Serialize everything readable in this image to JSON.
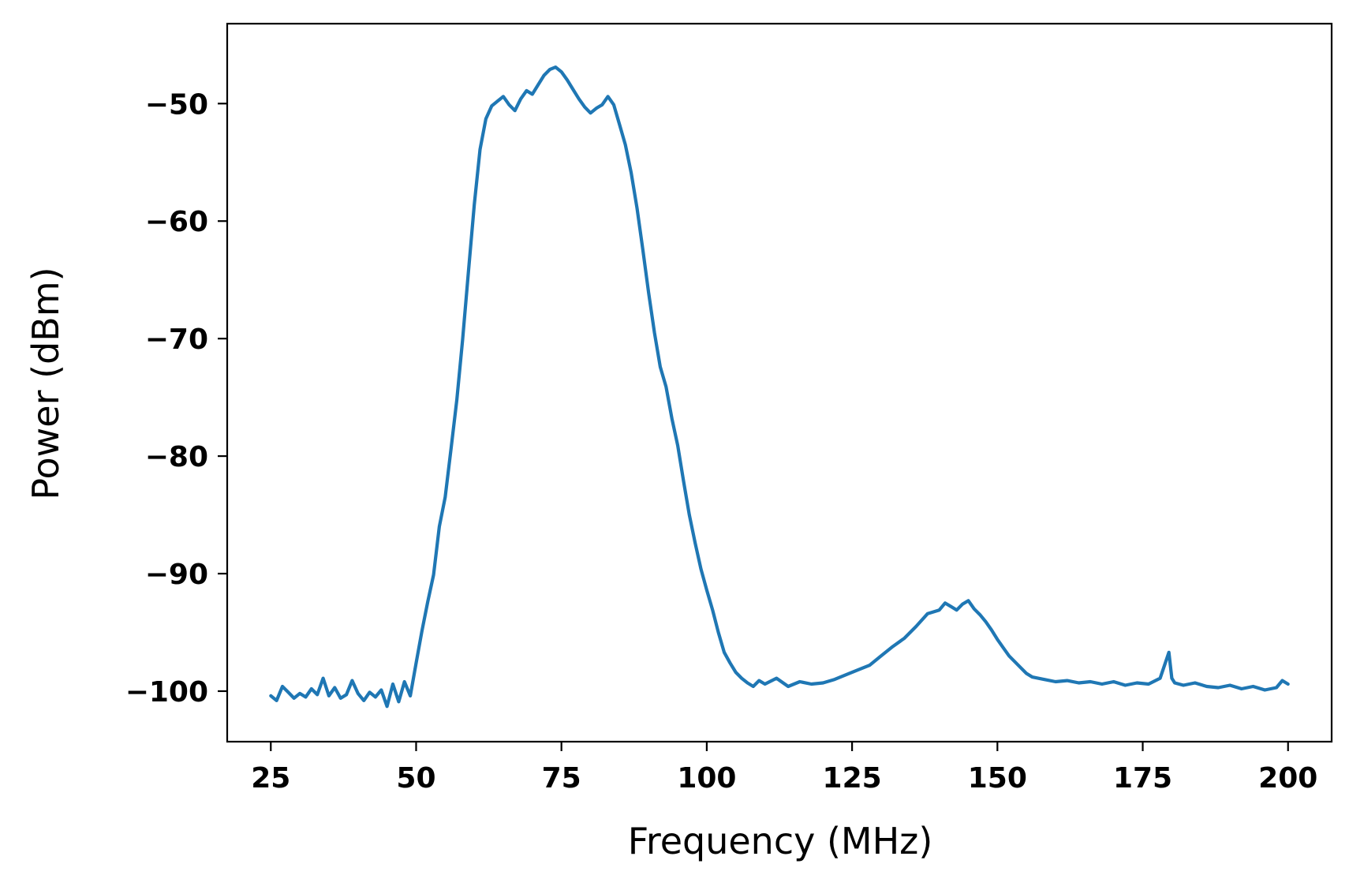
{
  "chart_data": {
    "type": "line",
    "title": "",
    "xlabel": "Frequency (MHz)",
    "ylabel": "Power (dBm)",
    "xlim": [
      17.5,
      207.5
    ],
    "ylim": [
      -104.3,
      -43.2
    ],
    "xticks": [
      25,
      50,
      75,
      100,
      125,
      150,
      175,
      200
    ],
    "xtick_labels": [
      "25",
      "50",
      "75",
      "100",
      "125",
      "150",
      "175",
      "200"
    ],
    "yticks": [
      -50,
      -60,
      -70,
      -80,
      -90,
      -100
    ],
    "ytick_labels": [
      "−50",
      "−60",
      "−70",
      "−80",
      "−90",
      "−100"
    ],
    "grid": false,
    "line_color": "#1f77b4",
    "series": [
      {
        "x": [
          25,
          26,
          27,
          28,
          29,
          30,
          31,
          32,
          33,
          34,
          35,
          36,
          37,
          38,
          39,
          40,
          41,
          42,
          43,
          44,
          45,
          46,
          47,
          48,
          49,
          50,
          51,
          52,
          53,
          54,
          55,
          56,
          57,
          58,
          59,
          60,
          61,
          62,
          63,
          64,
          65,
          66,
          67,
          68,
          69,
          70,
          71,
          72,
          73,
          74,
          75,
          76,
          77,
          78,
          79,
          80,
          81,
          82,
          83,
          84,
          85,
          86,
          87,
          88,
          89,
          90,
          91,
          92,
          93,
          94,
          95,
          96,
          97,
          98,
          99,
          100,
          101,
          102,
          103,
          104,
          105,
          106,
          107,
          108,
          109,
          110,
          112,
          114,
          116,
          118,
          120,
          122,
          124,
          126,
          128,
          130,
          132,
          134,
          136,
          138,
          140,
          141,
          142,
          143,
          144,
          145,
          146,
          147,
          148,
          149,
          150,
          151,
          152,
          153,
          154,
          155,
          156,
          158,
          160,
          162,
          164,
          166,
          168,
          170,
          172,
          174,
          176,
          178,
          179.5,
          180,
          180.5,
          182,
          184,
          186,
          188,
          190,
          192,
          194,
          196,
          198,
          199,
          200
        ],
        "y": [
          -100.4,
          -100.8,
          -99.6,
          -100.1,
          -100.6,
          -100.2,
          -100.5,
          -99.8,
          -100.3,
          -98.9,
          -100.4,
          -99.7,
          -100.6,
          -100.3,
          -99.1,
          -100.2,
          -100.8,
          -100.1,
          -100.5,
          -99.9,
          -101.3,
          -99.4,
          -100.9,
          -99.2,
          -100.4,
          -97.6,
          -94.9,
          -92.4,
          -90.1,
          -86.0,
          -83.5,
          -79.4,
          -75.2,
          -70.1,
          -64.3,
          -58.6,
          -53.9,
          -51.3,
          -50.2,
          -49.8,
          -49.4,
          -50.1,
          -50.6,
          -49.6,
          -48.9,
          -49.2,
          -48.4,
          -47.6,
          -47.1,
          -46.9,
          -47.3,
          -48.0,
          -48.8,
          -49.6,
          -50.3,
          -50.8,
          -50.4,
          -50.1,
          -49.4,
          -50.1,
          -51.8,
          -53.5,
          -55.9,
          -58.9,
          -62.4,
          -66.1,
          -69.5,
          -72.4,
          -74.1,
          -76.8,
          -79.1,
          -82.1,
          -85.0,
          -87.4,
          -89.6,
          -91.4,
          -93.1,
          -95.0,
          -96.7,
          -97.6,
          -98.4,
          -98.9,
          -99.3,
          -99.6,
          -99.1,
          -99.4,
          -98.9,
          -99.6,
          -99.2,
          -99.4,
          -99.3,
          -99.0,
          -98.6,
          -98.2,
          -97.8,
          -97.0,
          -96.2,
          -95.5,
          -94.5,
          -93.4,
          -93.1,
          -92.5,
          -92.8,
          -93.1,
          -92.6,
          -92.3,
          -93.0,
          -93.5,
          -94.1,
          -94.8,
          -95.6,
          -96.3,
          -97.0,
          -97.5,
          -98.0,
          -98.5,
          -98.8,
          -99.0,
          -99.2,
          -99.1,
          -99.3,
          -99.2,
          -99.4,
          -99.2,
          -99.5,
          -99.3,
          -99.4,
          -98.9,
          -96.7,
          -98.9,
          -99.3,
          -99.5,
          -99.3,
          -99.6,
          -99.7,
          -99.5,
          -99.8,
          -99.6,
          -99.9,
          -99.7,
          -99.1,
          -99.4
        ]
      }
    ]
  }
}
